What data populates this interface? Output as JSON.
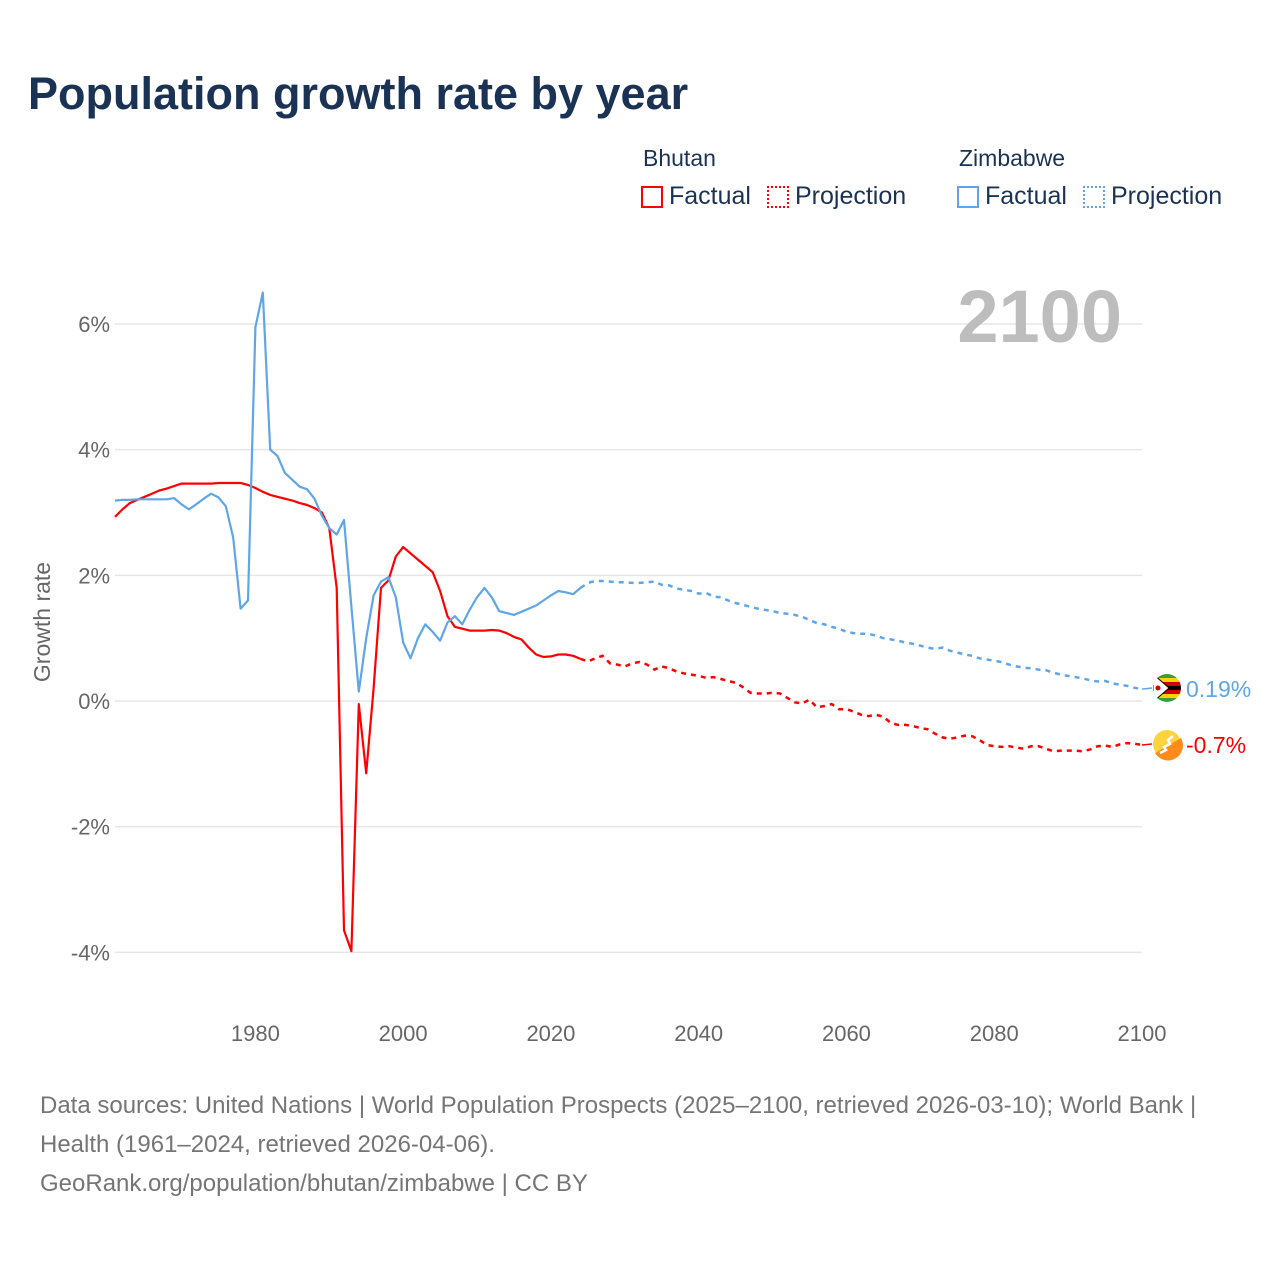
{
  "title": "Population growth rate by year",
  "legend": {
    "groups": [
      {
        "name": "Bhutan",
        "color": "#ff0000",
        "factual": "Factual",
        "projection": "Projection"
      },
      {
        "name": "Zimbabwe",
        "color": "#5ea6e8",
        "factual": "Factual",
        "projection": "Projection"
      }
    ]
  },
  "year_display": "2100",
  "chart_data": {
    "type": "line",
    "ylabel": "Growth rate",
    "xlabel": "",
    "xlim": [
      1961,
      2100
    ],
    "ylim": [
      -4.6,
      6.8
    ],
    "y_ticks": [
      6,
      4,
      2,
      0,
      -2,
      -4
    ],
    "y_tick_labels": [
      "6%",
      "4%",
      "2%",
      "0%",
      "-2%",
      "-4%"
    ],
    "x_ticks": [
      1980,
      2000,
      2020,
      2040,
      2060,
      2080,
      2100
    ],
    "x_tick_labels": [
      "1980",
      "2000",
      "2020",
      "2040",
      "2060",
      "2080",
      "2100"
    ],
    "grid": true,
    "legend_position": "top-right",
    "series": [
      {
        "name": "Bhutan",
        "color": "#ff0000",
        "end_label": "-0.7%",
        "factual_start": 1961,
        "factual": [
          2.93,
          3.05,
          3.15,
          3.2,
          3.25,
          3.3,
          3.35,
          3.38,
          3.42,
          3.46,
          3.46,
          3.46,
          3.46,
          3.46,
          3.47,
          3.47,
          3.47,
          3.47,
          3.44,
          3.39,
          3.33,
          3.28,
          3.25,
          3.22,
          3.19,
          3.15,
          3.12,
          3.07,
          3.0,
          2.75,
          1.8,
          -3.65,
          -3.98,
          -0.05,
          -1.15,
          0.2,
          1.8,
          1.92,
          2.3,
          2.45,
          2.35,
          2.25,
          2.15,
          2.05,
          1.75,
          1.35,
          1.18,
          1.15,
          1.12,
          1.12,
          1.12,
          1.13,
          1.12,
          1.08,
          1.02,
          0.98,
          0.85,
          0.74,
          0.7,
          0.71,
          0.74,
          0.74,
          0.72,
          0.67
        ],
        "projection_start": 2024,
        "projection": [
          0.67,
          0.63,
          0.68,
          0.72,
          0.6,
          0.58,
          0.55,
          0.6,
          0.62,
          0.58,
          0.5,
          0.55,
          0.52,
          0.47,
          0.44,
          0.42,
          0.4,
          0.37,
          0.38,
          0.35,
          0.32,
          0.29,
          0.22,
          0.13,
          0.12,
          0.12,
          0.13,
          0.12,
          0.05,
          -0.02,
          -0.04,
          0.02,
          -0.1,
          -0.08,
          -0.05,
          -0.13,
          -0.13,
          -0.17,
          -0.22,
          -0.24,
          -0.22,
          -0.25,
          -0.35,
          -0.38,
          -0.38,
          -0.4,
          -0.43,
          -0.45,
          -0.52,
          -0.58,
          -0.6,
          -0.58,
          -0.55,
          -0.56,
          -0.62,
          -0.7,
          -0.72,
          -0.73,
          -0.72,
          -0.74,
          -0.76,
          -0.72,
          -0.72,
          -0.76,
          -0.8,
          -0.79,
          -0.79,
          -0.79,
          -0.8,
          -0.77,
          -0.72,
          -0.71,
          -0.73,
          -0.69,
          -0.67,
          -0.68,
          -0.7
        ]
      },
      {
        "name": "Zimbabwe",
        "color": "#5ea6e8",
        "end_label": "0.19%",
        "factual_start": 1961,
        "factual": [
          3.19,
          3.2,
          3.2,
          3.21,
          3.21,
          3.21,
          3.21,
          3.21,
          3.23,
          3.13,
          3.05,
          3.13,
          3.22,
          3.3,
          3.24,
          3.1,
          2.6,
          1.47,
          1.6,
          5.95,
          6.5,
          4.0,
          3.9,
          3.63,
          3.52,
          3.41,
          3.37,
          3.22,
          2.95,
          2.75,
          2.65,
          2.88,
          1.5,
          0.15,
          1.0,
          1.68,
          1.9,
          1.97,
          1.65,
          0.93,
          0.68,
          1.0,
          1.22,
          1.1,
          0.96,
          1.25,
          1.35,
          1.22,
          1.45,
          1.65,
          1.8,
          1.65,
          1.43,
          1.4,
          1.37,
          1.42,
          1.47,
          1.52,
          1.6,
          1.68,
          1.75,
          1.73,
          1.7,
          1.8
        ],
        "projection_start": 2024,
        "projection": [
          1.8,
          1.88,
          1.91,
          1.91,
          1.9,
          1.89,
          1.89,
          1.88,
          1.88,
          1.89,
          1.9,
          1.85,
          1.84,
          1.79,
          1.77,
          1.75,
          1.71,
          1.72,
          1.66,
          1.65,
          1.6,
          1.56,
          1.53,
          1.5,
          1.47,
          1.45,
          1.43,
          1.4,
          1.39,
          1.37,
          1.34,
          1.29,
          1.24,
          1.22,
          1.18,
          1.15,
          1.1,
          1.08,
          1.07,
          1.07,
          1.04,
          1.0,
          0.98,
          0.96,
          0.93,
          0.91,
          0.88,
          0.85,
          0.83,
          0.85,
          0.8,
          0.77,
          0.74,
          0.72,
          0.68,
          0.66,
          0.64,
          0.62,
          0.58,
          0.55,
          0.53,
          0.52,
          0.5,
          0.49,
          0.45,
          0.42,
          0.4,
          0.38,
          0.36,
          0.33,
          0.31,
          0.32,
          0.28,
          0.26,
          0.24,
          0.21,
          0.19
        ]
      }
    ]
  },
  "footer": {
    "sources": "Data sources: United Nations | World Population Prospects (2025–2100, retrieved 2026-03-10); World Bank | Health (1961–2024, retrieved 2026-04-06).",
    "credit": "GeoRank.org/population/bhutan/zimbabwe | CC BY"
  }
}
